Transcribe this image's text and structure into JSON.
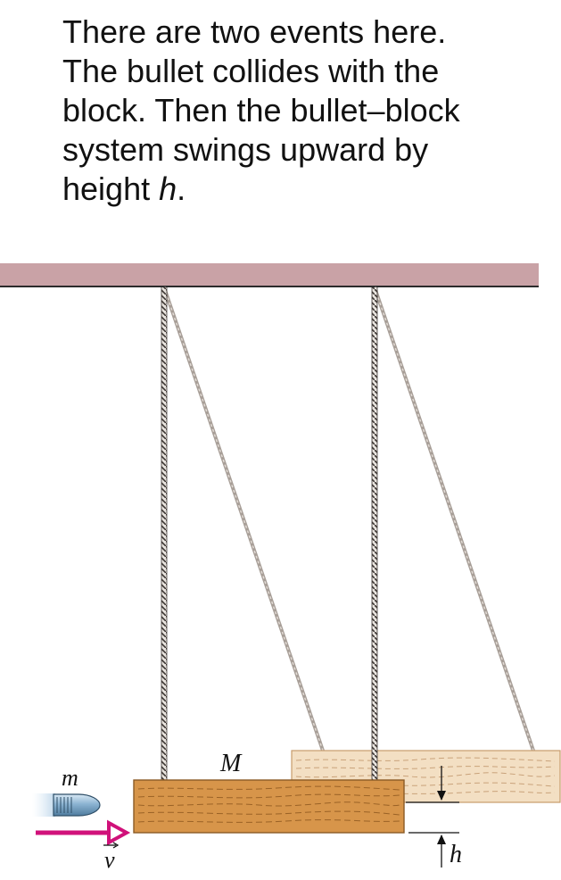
{
  "caption": {
    "lines": [
      "There are two events here.",
      "The bullet collides with the",
      "block. Then the bullet–block",
      "system swings upward by"
    ],
    "last_line_text": "height ",
    "last_line_var": "h",
    "last_line_end": "."
  },
  "labels": {
    "block_mass": "M",
    "bullet_mass": "m",
    "velocity": "v",
    "height": "h"
  },
  "colors": {
    "ceiling": "#c9a2a6",
    "block": "#d7954a",
    "block_swung": "#f3dfc3",
    "arrow": "#d0117a",
    "rope": "#4a4440",
    "rope_swung": "#a89f98",
    "bullet": "#7aa5c4"
  },
  "icons": {
    "bullet": "bullet-icon",
    "velocity_arrow": "right-arrow-icon"
  }
}
